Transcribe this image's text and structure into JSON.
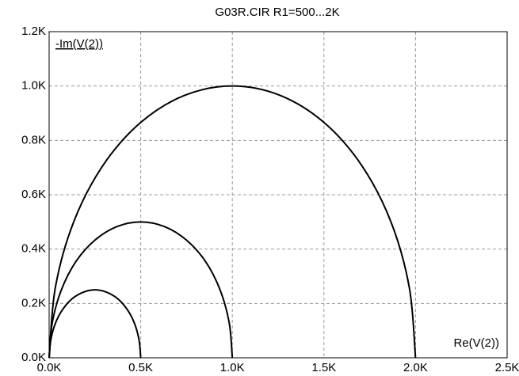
{
  "chart_data": {
    "type": "line",
    "title": "G03R.CIR R1=500...2K",
    "x_label": "Re(V(2))",
    "y_label": "-Im(V(2))",
    "series": [
      {
        "color": "#000000",
        "x": [
          0,
          9,
          33,
          73,
          125,
          185,
          250,
          315,
          375,
          427,
          467,
          491,
          500
        ],
        "values": [
          0,
          65,
          125,
          177,
          217,
          241,
          250,
          241,
          217,
          177,
          125,
          65,
          0
        ]
      },
      {
        "color": "#000000",
        "x": [
          0,
          17,
          67,
          146,
          250,
          371,
          500,
          629,
          750,
          854,
          933,
          983,
          1000
        ],
        "values": [
          0,
          129,
          250,
          354,
          433,
          483,
          500,
          483,
          433,
          354,
          250,
          129,
          0
        ]
      },
      {
        "color": "#000000",
        "x": [
          0,
          34,
          134,
          293,
          500,
          741,
          1000,
          1259,
          1500,
          1707,
          1866,
          1966,
          2000
        ],
        "values": [
          0,
          259,
          500,
          707,
          866,
          966,
          1000,
          966,
          866,
          707,
          500,
          259,
          0
        ]
      }
    ],
    "xlim": [
      0,
      2500
    ],
    "ylim": [
      0,
      1200
    ],
    "xticks": [
      {
        "value": 0,
        "label": "0.0K"
      },
      {
        "value": 500,
        "label": "0.5K"
      },
      {
        "value": 1000,
        "label": "1.0K"
      },
      {
        "value": 1500,
        "label": "1.5K"
      },
      {
        "value": 2000,
        "label": "2.0K"
      },
      {
        "value": 2500,
        "label": "2.5K"
      }
    ],
    "yticks": [
      {
        "value": 0,
        "label": "0.0K"
      },
      {
        "value": 200,
        "label": "0.2K"
      },
      {
        "value": 400,
        "label": "0.4K"
      },
      {
        "value": 600,
        "label": "0.6K"
      },
      {
        "value": 800,
        "label": "0.8K"
      },
      {
        "value": 1000,
        "label": "1.0K"
      },
      {
        "value": 1200,
        "label": "1.2K"
      }
    ],
    "grid": true
  }
}
